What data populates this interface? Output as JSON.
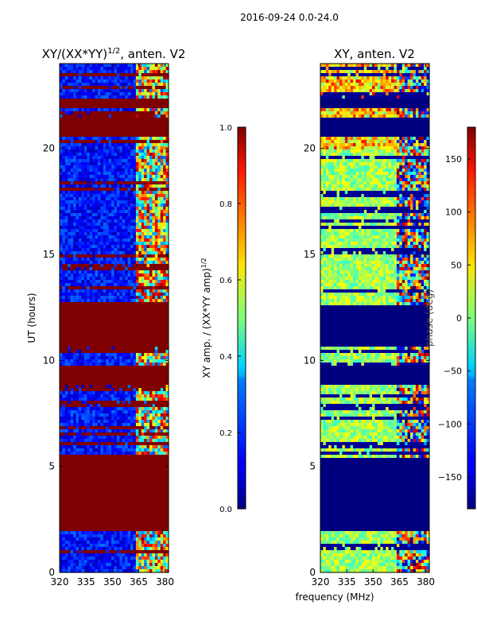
{
  "figure_title": "2016-09-24 0.0-24.0",
  "shared_xlabel": "frequency (MHz)",
  "chart_data": [
    {
      "type": "heatmap",
      "title_prefix": "XY/(XX*YY)",
      "title_sup": "1/2",
      "title_suffix": ", anten. V2",
      "ylabel": "UT (hours)",
      "xlim": [
        320,
        382
      ],
      "ylim": [
        0,
        24
      ],
      "xticks": [
        "320",
        "335",
        "350",
        "365",
        "380"
      ],
      "xtick_values": [
        320,
        335,
        350,
        365,
        380
      ],
      "yticks": [
        "0",
        "5",
        "10",
        "15",
        "20"
      ],
      "ytick_values": [
        0,
        5,
        10,
        15,
        20
      ],
      "masked_ut_bands": [
        [
          2.0,
          5.5
        ],
        [
          8.9,
          9.7
        ],
        [
          10.6,
          12.7
        ],
        [
          20.5,
          21.4
        ],
        [
          21.9,
          22.3
        ]
      ],
      "colorbar": {
        "label_prefix": "XY amp. / (XX*YY amp)",
        "label_sup": "1/2",
        "range": [
          0.0,
          1.0
        ],
        "ticks": [
          "0.0",
          "0.2",
          "0.4",
          "0.6",
          "0.8",
          "1.0"
        ],
        "tick_values": [
          0.0,
          0.2,
          0.4,
          0.6,
          0.8,
          1.0
        ]
      }
    },
    {
      "type": "heatmap",
      "title": "XY, anten. V2",
      "xlim": [
        320,
        382
      ],
      "ylim": [
        0,
        24
      ],
      "xticks": [
        "320",
        "335",
        "350",
        "365",
        "380"
      ],
      "xtick_values": [
        320,
        335,
        350,
        365,
        380
      ],
      "yticks": [
        "0",
        "5",
        "10",
        "15",
        "20"
      ],
      "ytick_values": [
        0,
        5,
        10,
        15,
        20
      ],
      "masked_ut_bands": [
        [
          2.0,
          5.4
        ],
        [
          8.9,
          9.7
        ],
        [
          10.6,
          12.6
        ],
        [
          20.5,
          21.4
        ],
        [
          21.9,
          22.3
        ]
      ],
      "colorbar": {
        "label": "phase (deg)",
        "range": [
          -180,
          180
        ],
        "ticks": [
          "−150",
          "−100",
          "−50",
          "0",
          "50",
          "100",
          "150"
        ],
        "tick_values": [
          -150,
          -100,
          -50,
          0,
          50,
          100,
          150
        ]
      }
    }
  ]
}
